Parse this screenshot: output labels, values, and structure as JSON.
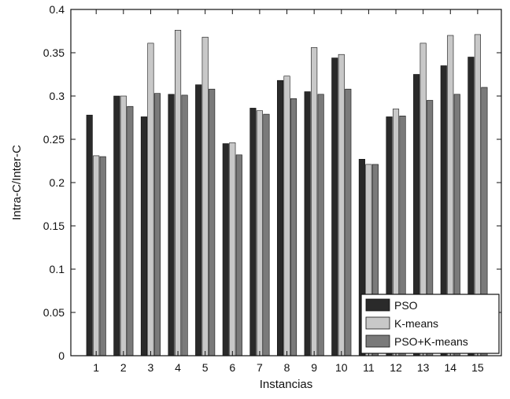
{
  "chart_data": {
    "type": "bar",
    "title": "",
    "xlabel": "Instancias",
    "ylabel": "Intra-C/Inter-C",
    "categories": [
      "1",
      "2",
      "3",
      "4",
      "5",
      "6",
      "7",
      "8",
      "9",
      "10",
      "11",
      "12",
      "13",
      "14",
      "15"
    ],
    "ylim": [
      0,
      0.4
    ],
    "yticks": [
      "0",
      "0.05",
      "0.1",
      "0.15",
      "0.2",
      "0.25",
      "0.3",
      "0.35",
      "0.4"
    ],
    "grid": false,
    "legend_position": "bottom-right",
    "series": [
      {
        "name": "PSO",
        "color": "#2a2a2a",
        "values": [
          0.278,
          0.3,
          0.276,
          0.302,
          0.313,
          0.245,
          0.286,
          0.318,
          0.305,
          0.344,
          0.227,
          0.276,
          0.325,
          0.335,
          0.345
        ]
      },
      {
        "name": "K-means",
        "color": "#c8c8c8",
        "values": [
          0.231,
          0.3,
          0.361,
          0.376,
          0.368,
          0.246,
          0.283,
          0.323,
          0.356,
          0.348,
          0.221,
          0.285,
          0.361,
          0.37,
          0.371
        ]
      },
      {
        "name": "PSO+K-means",
        "color": "#7a7a7a",
        "values": [
          0.23,
          0.288,
          0.303,
          0.301,
          0.308,
          0.232,
          0.279,
          0.297,
          0.302,
          0.308,
          0.221,
          0.277,
          0.295,
          0.302,
          0.31
        ]
      }
    ]
  }
}
